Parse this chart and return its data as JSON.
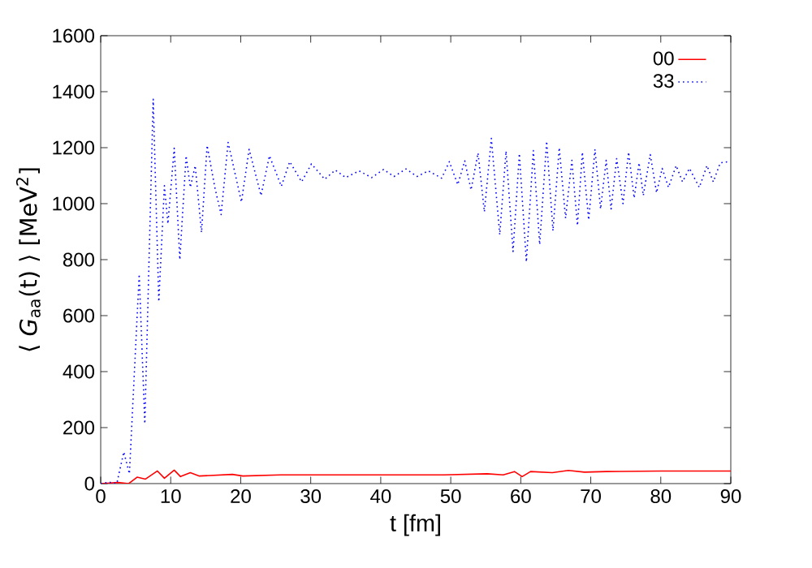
{
  "chart_data": {
    "type": "line",
    "xlabel": "t  [fm]",
    "ylabel": "⟨ *G*$_{aa}$(t) ⟩  [MeV$^{2}$]",
    "xlim": [
      0,
      90
    ],
    "ylim": [
      0,
      1600
    ],
    "xticks": [
      0,
      10,
      20,
      30,
      40,
      50,
      60,
      70,
      80,
      90
    ],
    "yticks": [
      0,
      200,
      400,
      600,
      800,
      1000,
      1200,
      1400,
      1600
    ],
    "grid": false,
    "legend": "top right",
    "marker": "none",
    "series": [
      {
        "name": "00",
        "color": "#ff0000",
        "line_style": "solid",
        "x": [
          0,
          2.5,
          4.0,
          5.2,
          6.4,
          8.1,
          9.1,
          10.5,
          11.4,
          12.8,
          14.1,
          18.8,
          20.3,
          25.7,
          33.5,
          49,
          55.2,
          57.5,
          59.1,
          60.2,
          61.4,
          64.5,
          66.8,
          69.1,
          72.2,
          80,
          90
        ],
        "values": [
          0,
          4,
          0,
          23,
          16,
          45,
          19,
          48,
          25,
          39,
          27,
          33,
          27,
          31,
          31,
          31,
          35,
          31,
          43,
          25,
          43,
          39,
          47,
          41,
          43,
          45,
          45
        ]
      },
      {
        "name": "33",
        "color": "#0000ff",
        "line_style": "dotted",
        "x": [
          0,
          1.2,
          2.3,
          3.3,
          4.1,
          5.5,
          6.3,
          7.5,
          8.3,
          9.1,
          9.6,
          10.5,
          11.3,
          12.2,
          12.8,
          13.5,
          14.4,
          15.2,
          16.3,
          17.2,
          18.2,
          20.1,
          21.2,
          22.9,
          24.1,
          25.8,
          27.0,
          28.7,
          30.1,
          32.0,
          33.5,
          35.0,
          36.9,
          38.7,
          40.4,
          41.9,
          43.6,
          45.2,
          46.8,
          48.7,
          49.8,
          51.0,
          52.0,
          52.9,
          53.9,
          54.8,
          55.8,
          57.0,
          57.9,
          58.9,
          59.8,
          60.8,
          61.8,
          62.7,
          63.7,
          64.6,
          65.5,
          66.4,
          67.3,
          68.1,
          68.8,
          69.7,
          70.6,
          71.4,
          72.2,
          72.9,
          73.7,
          74.6,
          75.4,
          76.2,
          76.9,
          77.5,
          78.5,
          79.4,
          80.2,
          81.1,
          82.2,
          83.1,
          84.1,
          85.5,
          86.6,
          87.5,
          88.5,
          89.7
        ],
        "values": [
          0,
          5,
          0,
          113,
          35,
          748,
          214,
          1373,
          650,
          1064,
          928,
          1198,
          800,
          1171,
          1058,
          1136,
          897,
          1208,
          1058,
          961,
          1219,
          1006,
          1194,
          1029,
          1171,
          1062,
          1150,
          1078,
          1142,
          1087,
          1120,
          1093,
          1117,
          1093,
          1122,
          1097,
          1124,
          1097,
          1117,
          1091,
          1150,
          1068,
          1153,
          1049,
          1181,
          971,
          1233,
          889,
          1188,
          829,
          1179,
          792,
          1190,
          854,
          1223,
          903,
          1200,
          948,
          1155,
          922,
          1184,
          942,
          1194,
          981,
          1155,
          981,
          1161,
          1000,
          1184,
          1020,
          1146,
          1029,
          1175,
          1039,
          1126,
          1058,
          1136,
          1078,
          1126,
          1058,
          1136,
          1078,
          1146,
          1150
        ]
      }
    ]
  }
}
